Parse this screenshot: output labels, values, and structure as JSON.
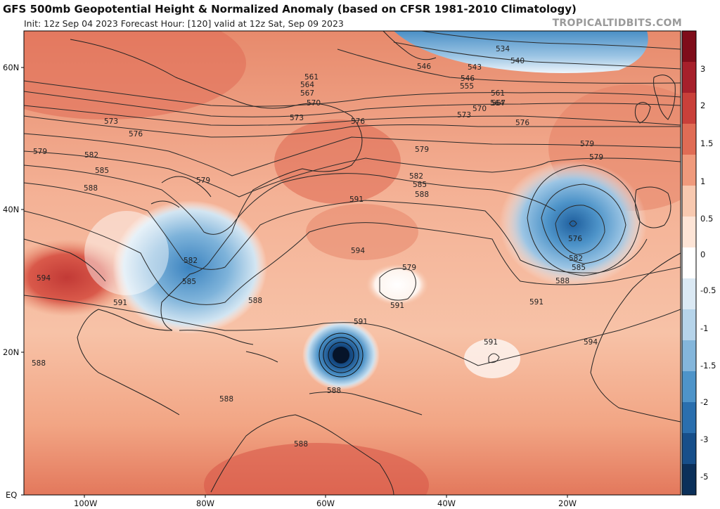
{
  "header": {
    "title": "GFS 500mb Geopotential Height & Normalized Anomaly (based on CFSR 1981-2010 Climatology)",
    "subtitle": "Init: 12z Sep 04 2023   Forecast Hour: [120]   valid at 12z Sat, Sep 09 2023",
    "brand": "TROPICALTIDBITS.COM"
  },
  "axes": {
    "lat_labels": [
      "60N",
      "40N",
      "20N",
      "EQ"
    ],
    "lon_labels": [
      "100W",
      "80W",
      "60W",
      "40W",
      "20W"
    ]
  },
  "colorbar": {
    "labels": [
      "3",
      "2",
      "1.5",
      "1",
      "0.5",
      "0",
      "-0.5",
      "-1",
      "-1.5",
      "-2",
      "-3",
      "-5"
    ],
    "colors": [
      "#7f0d1a",
      "#a6202b",
      "#c9403a",
      "#e06c55",
      "#f09a7c",
      "#f8c9b0",
      "#fde4d6",
      "#ffffff",
      "#dbe9f4",
      "#b6d4ea",
      "#84b6db",
      "#4e94c9",
      "#2a6fae",
      "#174f8a",
      "#0b305a"
    ]
  },
  "contour_labels": [
    {
      "text": "534"
    },
    {
      "text": "540"
    },
    {
      "text": "543"
    },
    {
      "text": "546"
    },
    {
      "text": "546"
    },
    {
      "text": "555"
    },
    {
      "text": "561"
    },
    {
      "text": "561"
    },
    {
      "text": "564"
    },
    {
      "text": "564"
    },
    {
      "text": "567"
    },
    {
      "text": "567"
    },
    {
      "text": "570"
    },
    {
      "text": "570"
    },
    {
      "text": "573"
    },
    {
      "text": "573"
    },
    {
      "text": "573"
    },
    {
      "text": "576"
    },
    {
      "text": "576"
    },
    {
      "text": "576"
    },
    {
      "text": "576"
    },
    {
      "text": "579"
    },
    {
      "text": "579"
    },
    {
      "text": "579"
    },
    {
      "text": "579"
    },
    {
      "text": "579"
    },
    {
      "text": "579"
    },
    {
      "text": "582"
    },
    {
      "text": "582"
    },
    {
      "text": "582"
    },
    {
      "text": "582"
    },
    {
      "text": "585"
    },
    {
      "text": "585"
    },
    {
      "text": "585"
    },
    {
      "text": "585"
    },
    {
      "text": "588"
    },
    {
      "text": "588"
    },
    {
      "text": "588"
    },
    {
      "text": "588"
    },
    {
      "text": "588"
    },
    {
      "text": "588"
    },
    {
      "text": "588"
    },
    {
      "text": "591"
    },
    {
      "text": "591"
    },
    {
      "text": "591"
    },
    {
      "text": "591"
    },
    {
      "text": "591"
    },
    {
      "text": "591"
    },
    {
      "text": "594"
    },
    {
      "text": "594"
    },
    {
      "text": "594"
    },
    {
      "text": "588"
    }
  ]
}
